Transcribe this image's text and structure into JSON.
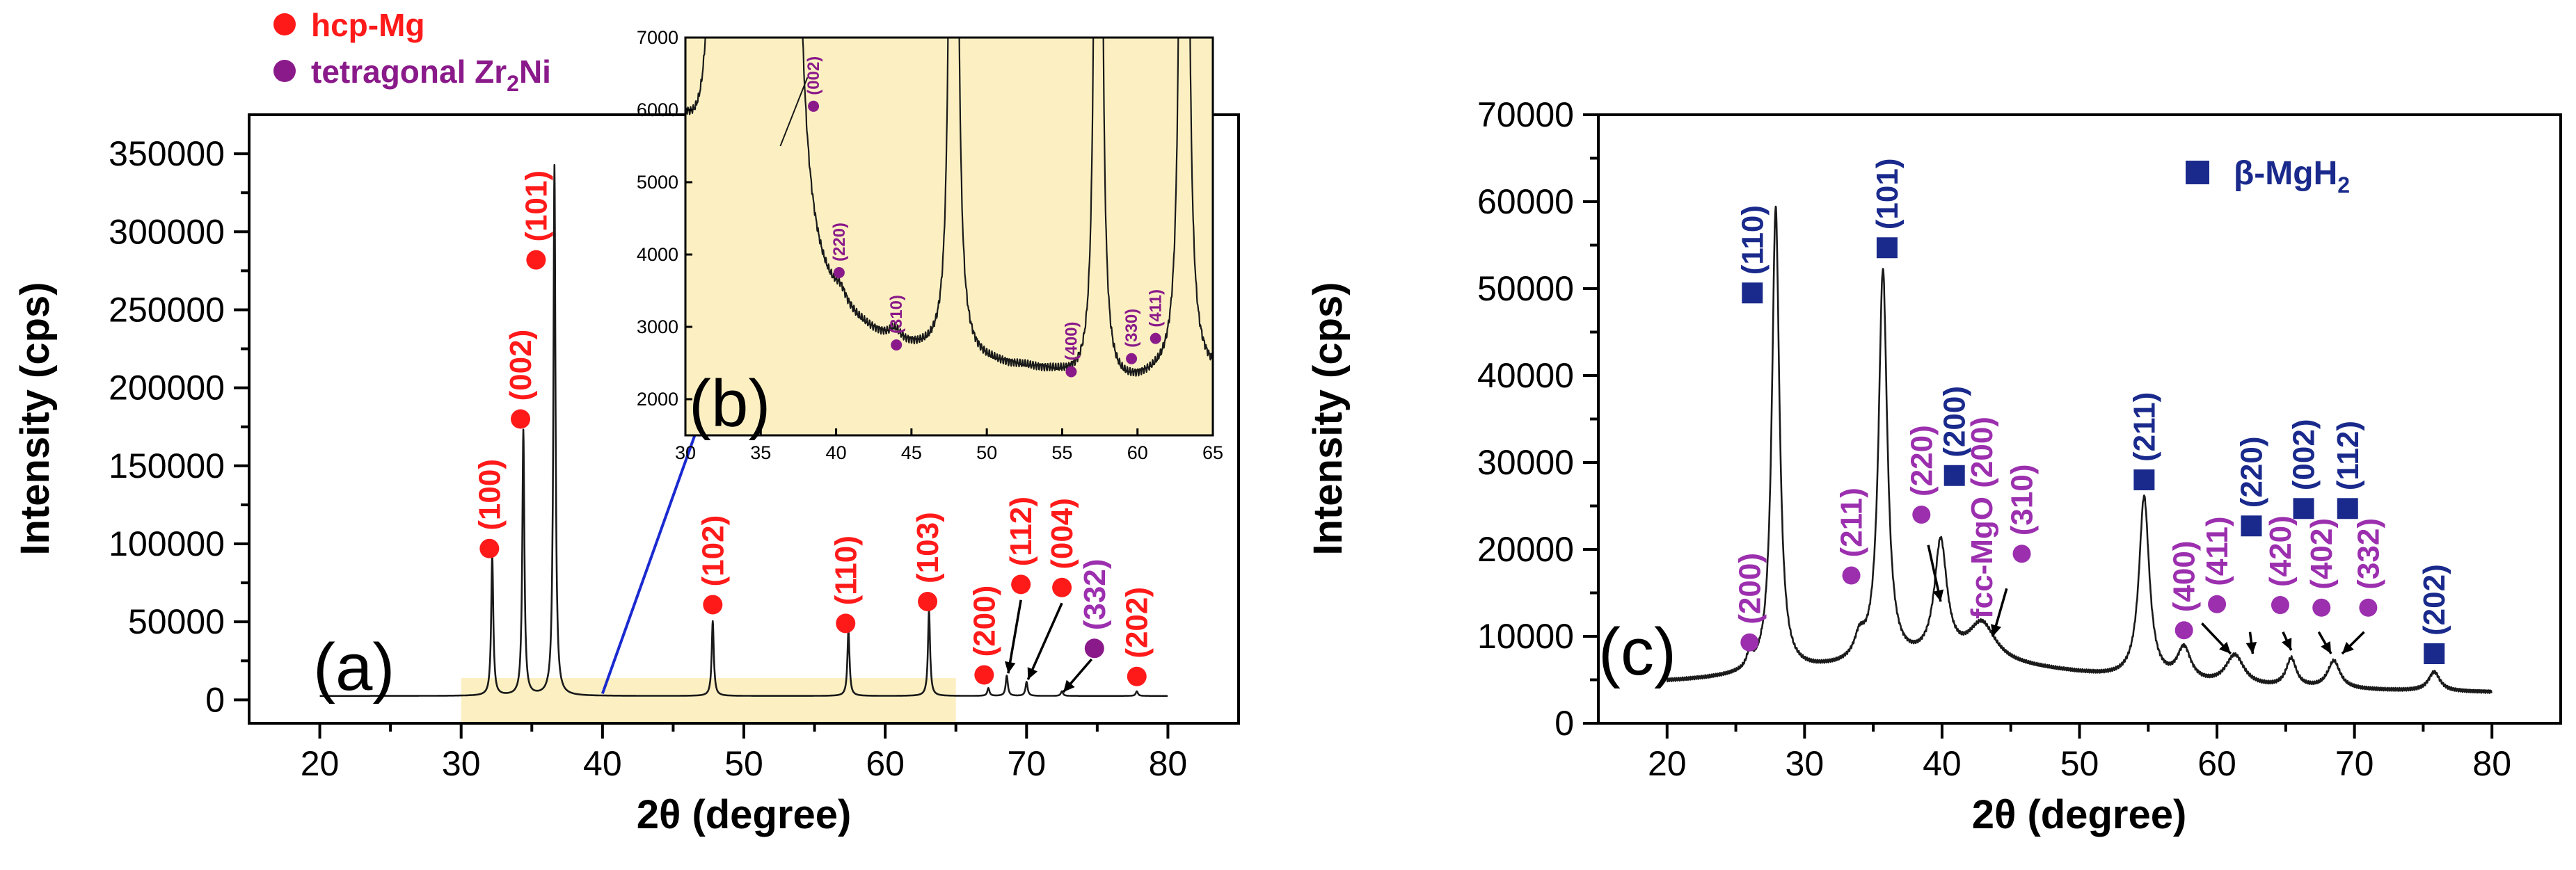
{
  "chart_data": [
    {
      "panel": "(a)",
      "type": "line",
      "xlabel": "2θ (degree)",
      "ylabel": "Intensity (cps)",
      "xlim": [
        15,
        85
      ],
      "ylim": [
        -15000,
        375000
      ],
      "xticks": [
        20,
        30,
        40,
        50,
        60,
        70,
        80
      ],
      "yticks": [
        0,
        50000,
        100000,
        150000,
        200000,
        250000,
        300000,
        350000
      ],
      "highlight_range": {
        "x": [
          30,
          65
        ],
        "y": [
          -15000,
          14000
        ]
      },
      "legend": [
        {
          "label": "hcp-Mg",
          "color": "#ff1a1a"
        },
        {
          "label": "tetragonal Zr",
          "subscript": "2",
          "suffix": "Ni",
          "color": "#8a1a8a"
        }
      ],
      "peaks": [
        {
          "x": 32.2,
          "y": 90000
        },
        {
          "x": 34.4,
          "y": 170000
        },
        {
          "x": 36.6,
          "y": 340000
        },
        {
          "x": 47.8,
          "y": 48000
        },
        {
          "x": 57.4,
          "y": 42000
        },
        {
          "x": 63.1,
          "y": 55000
        },
        {
          "x": 67.3,
          "y": 5000
        },
        {
          "x": 68.6,
          "y": 13000
        },
        {
          "x": 70.0,
          "y": 9000
        },
        {
          "x": 72.5,
          "y": 3000
        },
        {
          "x": 77.8,
          "y": 3000
        }
      ],
      "annotations": [
        {
          "label": "(100)",
          "x": 32.0,
          "y": 97000,
          "phase": "Mg"
        },
        {
          "label": "(002)",
          "x": 34.2,
          "y": 180000,
          "phase": "Mg"
        },
        {
          "label": "(101)",
          "x": 35.3,
          "y": 282000,
          "phase": "Mg"
        },
        {
          "label": "(102)",
          "x": 47.8,
          "y": 61000,
          "phase": "Mg"
        },
        {
          "label": "(110)",
          "x": 57.2,
          "y": 49000,
          "phase": "Mg"
        },
        {
          "label": "(103)",
          "x": 63.0,
          "y": 63000,
          "phase": "Mg"
        },
        {
          "label": "(200)",
          "x": 67.0,
          "y": 16000,
          "phase": "Mg"
        },
        {
          "label": "(112)",
          "x": 69.6,
          "y": 74000,
          "phase": "Mg"
        },
        {
          "label": "(004)",
          "x": 72.5,
          "y": 72000,
          "phase": "Mg"
        },
        {
          "label": "(332)",
          "x": 74.8,
          "y": 33000,
          "phase": "Zr2Ni"
        },
        {
          "label": "(202)",
          "x": 77.8,
          "y": 15000,
          "phase": "Mg"
        }
      ]
    },
    {
      "panel": "(b)",
      "type": "line",
      "inset_of": "(a)",
      "xlim": [
        30,
        65
      ],
      "ylim": [
        1500,
        7000
      ],
      "xticks": [
        30,
        35,
        40,
        45,
        50,
        55,
        60,
        65
      ],
      "yticks": [
        2000,
        3000,
        4000,
        5000,
        6000,
        7000
      ],
      "annotations": [
        {
          "label": "(002)",
          "x": 38.5,
          "y": 6050
        },
        {
          "label": "(220)",
          "x": 40.2,
          "y": 3750
        },
        {
          "label": "(310)",
          "x": 44.0,
          "y": 2750
        },
        {
          "label": "(400)",
          "x": 55.6,
          "y": 2380
        },
        {
          "label": "(330)",
          "x": 59.6,
          "y": 2560
        },
        {
          "label": "(411)",
          "x": 61.2,
          "y": 2840
        }
      ]
    },
    {
      "panel": "(c)",
      "type": "line",
      "xlabel": "2θ (degree)",
      "ylabel": "Intensity (cps)",
      "xlim": [
        15,
        85
      ],
      "ylim": [
        0,
        70000
      ],
      "xticks": [
        20,
        30,
        40,
        50,
        60,
        70,
        80
      ],
      "yticks": [
        0,
        10000,
        20000,
        30000,
        40000,
        50000,
        60000,
        70000
      ],
      "legend": [
        {
          "label": "β-MgH",
          "subscript": "2",
          "color": "#1a2a8c"
        }
      ],
      "peaks": [
        {
          "x": 26.0,
          "y": 6200
        },
        {
          "x": 27.9,
          "y": 60000
        },
        {
          "x": 34.0,
          "y": 8800
        },
        {
          "x": 35.7,
          "y": 52000
        },
        {
          "x": 39.9,
          "y": 21000
        },
        {
          "x": 42.9,
          "y": 11500
        },
        {
          "x": 54.7,
          "y": 26000
        },
        {
          "x": 57.6,
          "y": 9000
        },
        {
          "x": 61.3,
          "y": 8600
        },
        {
          "x": 65.4,
          "y": 9000
        },
        {
          "x": 68.5,
          "y": 8400
        },
        {
          "x": 75.8,
          "y": 5500
        }
      ],
      "annotations": [
        {
          "label": "(200)",
          "x": 26.0,
          "y": 9300,
          "phase": "Zr2Ni"
        },
        {
          "label": "(110)",
          "x": 26.2,
          "y": 49500,
          "phase": "MgH2"
        },
        {
          "label": "(211)",
          "x": 33.4,
          "y": 17000,
          "phase": "Zr2Ni"
        },
        {
          "label": "(101)",
          "x": 36.0,
          "y": 54700,
          "phase": "MgH2"
        },
        {
          "label": "(220)",
          "x": 38.5,
          "y": 24000,
          "phase": "Zr2Ni"
        },
        {
          "label": "(200)",
          "x": 40.9,
          "y": 28500,
          "phase": "MgH2"
        },
        {
          "label": "fcc-MgO (200)",
          "x": 42.9,
          "y": 12000,
          "phase": "MgO"
        },
        {
          "label": "(310)",
          "x": 45.8,
          "y": 19500,
          "phase": "Zr2Ni"
        },
        {
          "label": "(211)",
          "x": 54.7,
          "y": 28000,
          "phase": "MgH2"
        },
        {
          "label": "(400)",
          "x": 57.6,
          "y": 10700,
          "phase": "Zr2Ni"
        },
        {
          "label": "(411)",
          "x": 60.0,
          "y": 13700,
          "phase": "Zr2Ni"
        },
        {
          "label": "(220)",
          "x": 62.5,
          "y": 22700,
          "phase": "MgH2"
        },
        {
          "label": "(420)",
          "x": 64.6,
          "y": 13600,
          "phase": "Zr2Ni"
        },
        {
          "label": "(002)",
          "x": 66.3,
          "y": 24700,
          "phase": "MgH2"
        },
        {
          "label": "(402)",
          "x": 67.6,
          "y": 13300,
          "phase": "Zr2Ni"
        },
        {
          "label": "(112)",
          "x": 69.5,
          "y": 24700,
          "phase": "MgH2"
        },
        {
          "label": "(332)",
          "x": 71.0,
          "y": 13300,
          "phase": "Zr2Ni"
        },
        {
          "label": "(202)",
          "x": 75.8,
          "y": 8000,
          "phase": "MgH2"
        }
      ]
    }
  ],
  "colors": {
    "mg": "#ff1a1a",
    "zr2ni": "#8a1a8a",
    "zr2ni_c": "#9b2fae",
    "mgh2": "#1a2a8c",
    "inset_bg": "#fcf0c2",
    "highlight_bg": "#fcf0c2",
    "arrow_blue": "#1a2ad0"
  }
}
